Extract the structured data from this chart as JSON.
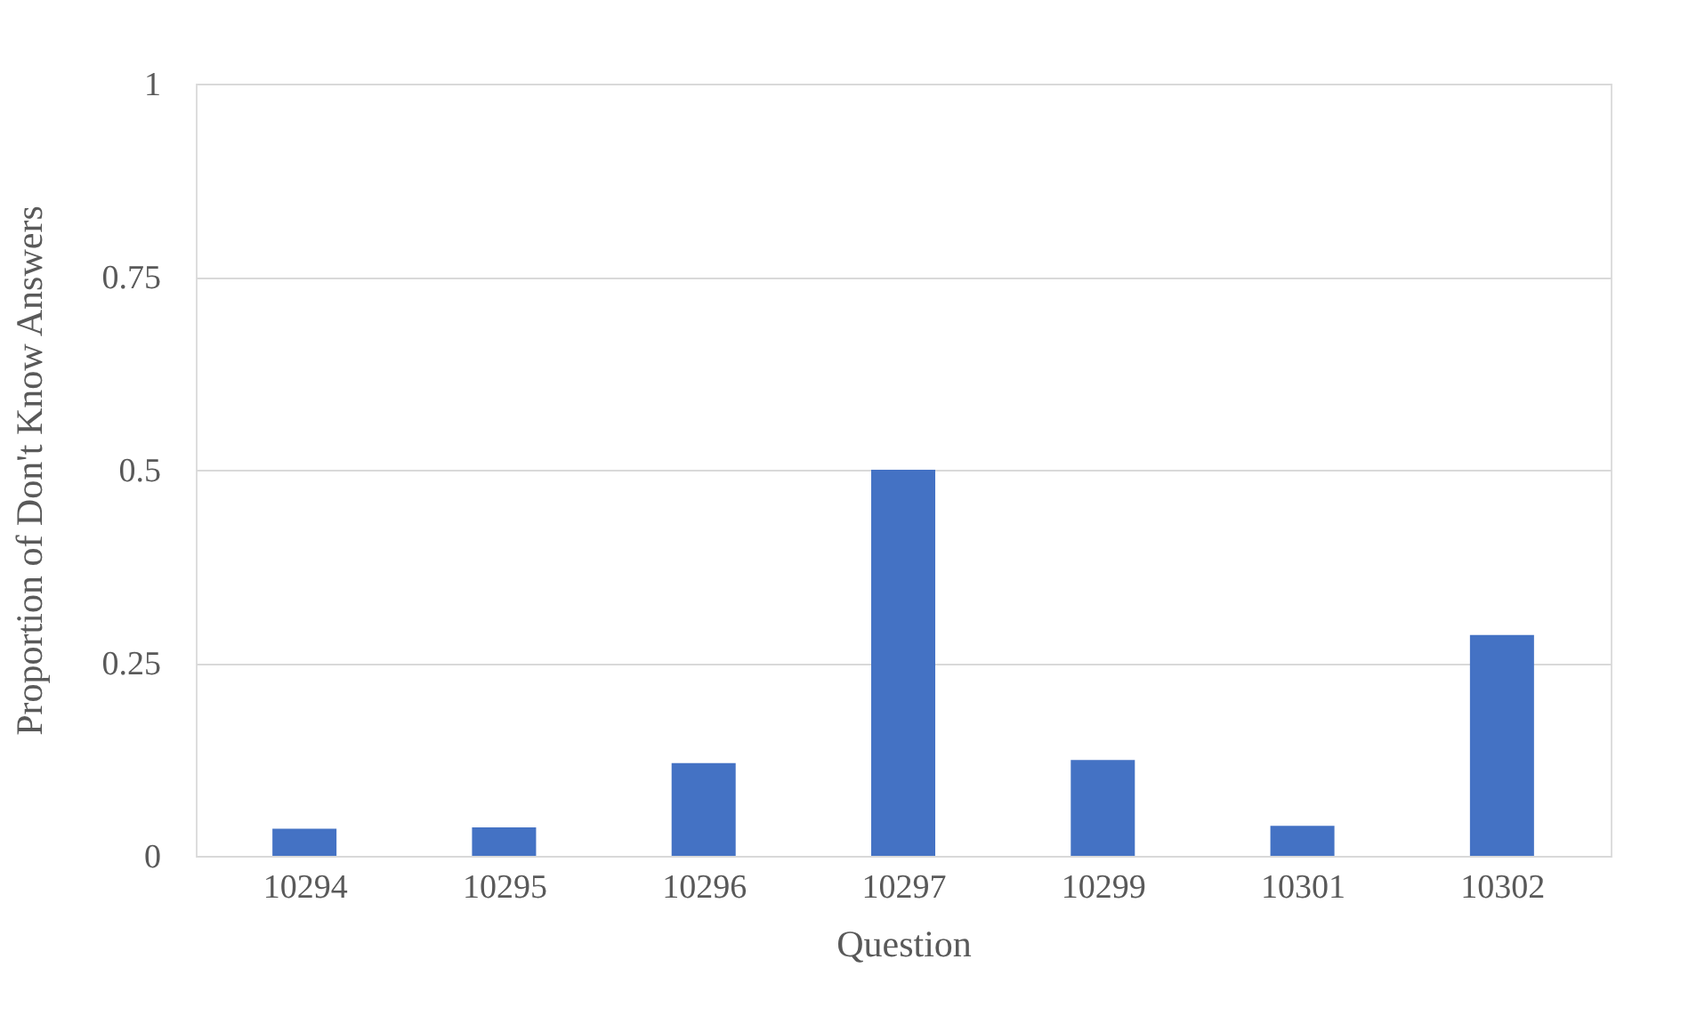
{
  "chart_data": {
    "type": "bar",
    "xlabel": "Question",
    "ylabel": "Proportion of Don't Know Answers",
    "categories": [
      "10294",
      "10295",
      "10296",
      "10297",
      "10299",
      "10301",
      "10302"
    ],
    "values": [
      0.035,
      0.037,
      0.12,
      0.5,
      0.124,
      0.039,
      0.286
    ],
    "color": "#4472c4",
    "ylim": [
      0,
      1
    ],
    "yticks": [
      0,
      0.25,
      0.5,
      0.75,
      1
    ],
    "grid": "y"
  }
}
